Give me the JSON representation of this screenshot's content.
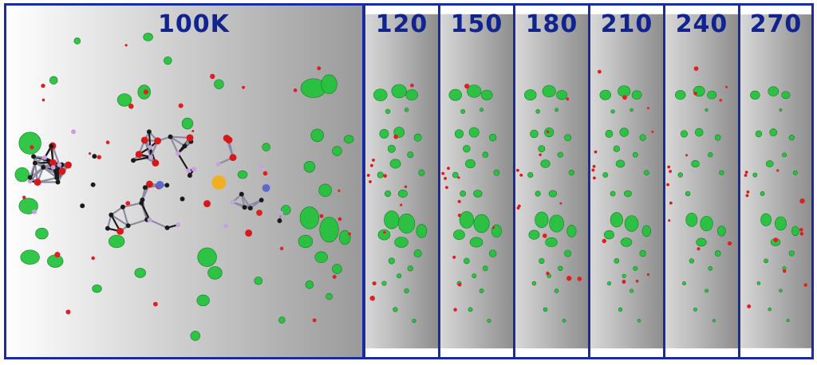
{
  "figure": {
    "panels": [
      {
        "label": "100K",
        "kind": "main"
      },
      {
        "label": "120",
        "kind": "narrow"
      },
      {
        "label": "150",
        "kind": "narrow"
      },
      {
        "label": "180",
        "kind": "narrow"
      },
      {
        "label": "210",
        "kind": "narrow"
      },
      {
        "label": "240",
        "kind": "narrow"
      },
      {
        "label": "270",
        "kind": "narrow"
      }
    ],
    "colors": {
      "border": "#1a2aa0",
      "label": "#10238f",
      "positive_density": "#22c23a",
      "negative_density": "#e02020",
      "carbon": "#1a1a1a",
      "oxygen": "#d81818",
      "bond_grey": "#8a8aa0"
    }
  }
}
